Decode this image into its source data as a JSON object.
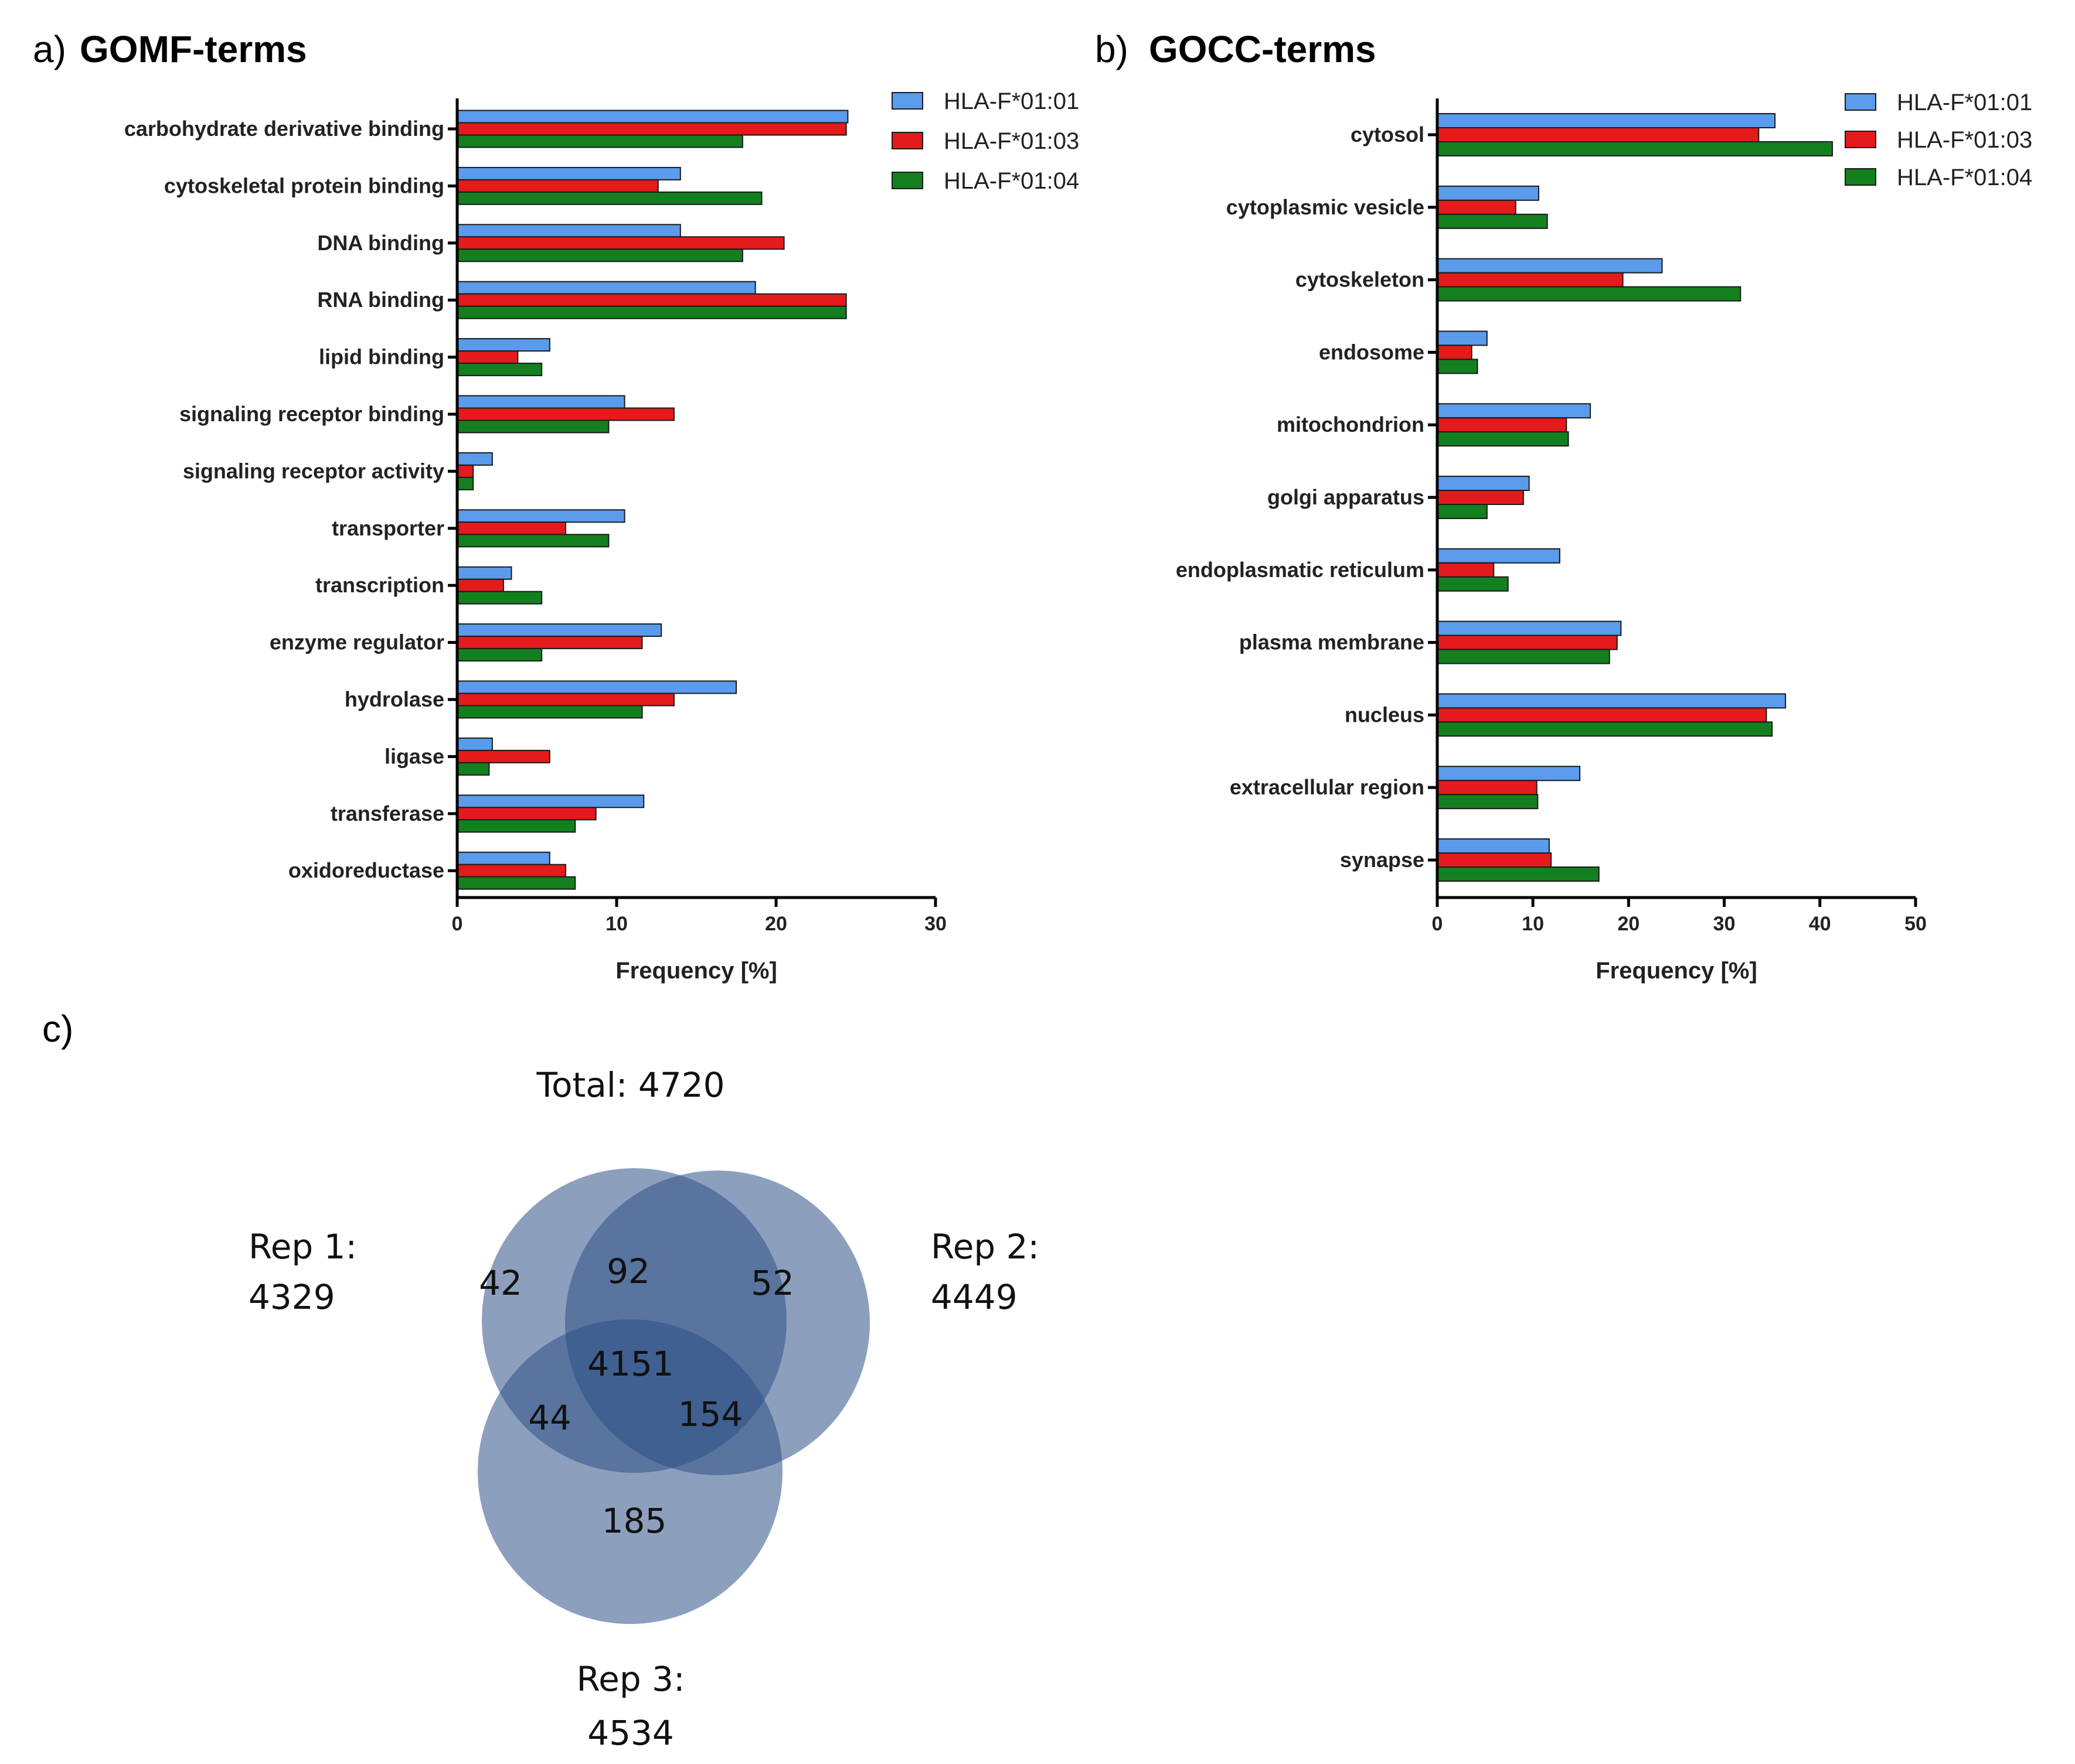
{
  "colors": {
    "s1": "#5a9bec",
    "s2": "#e41a1c",
    "s3": "#137f1f",
    "venn": "#2d5186",
    "axis": "#000000"
  },
  "chart_data": [
    {
      "panel": "a)",
      "type": "bar",
      "orientation": "horizontal",
      "title": "GOMF-terms",
      "xlabel": "Frequency [%]",
      "xlim": [
        0,
        30
      ],
      "xticks": [
        "0",
        "10",
        "20",
        "30"
      ],
      "categories": [
        "carbohydrate derivative binding",
        "cytoskeletal protein binding",
        "DNA binding",
        "RNA binding",
        "lipid binding",
        "signaling receptor binding",
        "signaling receptor activity",
        "transporter",
        "transcription",
        "enzyme regulator",
        "hydrolase",
        "ligase",
        "transferase",
        "oxidoreductase"
      ],
      "series": [
        {
          "name": "HLA-F*01:01",
          "values": [
            24.5,
            14.0,
            14.0,
            18.7,
            5.8,
            10.5,
            2.2,
            10.5,
            3.4,
            12.8,
            17.5,
            2.2,
            11.7,
            5.8
          ]
        },
        {
          "name": "HLA-F*01:03",
          "values": [
            24.4,
            12.6,
            20.5,
            24.4,
            3.8,
            13.6,
            1.0,
            6.8,
            2.9,
            11.6,
            13.6,
            5.8,
            8.7,
            6.8
          ]
        },
        {
          "name": "HLA-F*01:04",
          "values": [
            17.9,
            19.1,
            17.9,
            24.4,
            5.3,
            9.5,
            1.0,
            9.5,
            5.3,
            5.3,
            11.6,
            2.0,
            7.4,
            7.4
          ]
        }
      ]
    },
    {
      "panel": "b)",
      "type": "bar",
      "orientation": "horizontal",
      "title": "GOCC-terms",
      "xlabel": "Frequency [%]",
      "xlim": [
        0,
        50
      ],
      "xticks": [
        "0",
        "10",
        "20",
        "30",
        "40",
        "50"
      ],
      "categories": [
        "cytosol",
        "cytoplasmic vesicle",
        "cytoskeleton",
        "endosome",
        "mitochondrion",
        "golgi apparatus",
        "endoplasmatic reticulum",
        "plasma membrane",
        "nucleus",
        "extracellular region",
        "synapse"
      ],
      "series": [
        {
          "name": "HLA-F*01:01",
          "values": [
            35.3,
            10.6,
            23.5,
            5.2,
            16.0,
            9.6,
            12.8,
            19.2,
            36.4,
            14.9,
            11.7
          ]
        },
        {
          "name": "HLA-F*01:03",
          "values": [
            33.6,
            8.2,
            19.4,
            3.6,
            13.5,
            9.0,
            5.9,
            18.8,
            34.4,
            10.4,
            11.9
          ]
        },
        {
          "name": "HLA-F*01:04",
          "values": [
            41.3,
            11.5,
            31.7,
            4.2,
            13.7,
            5.2,
            7.4,
            18.0,
            35.0,
            10.5,
            16.9
          ]
        }
      ]
    }
  ],
  "venn": {
    "panel": "c)",
    "total": "Total: 4720",
    "labels": [
      {
        "line1": "Rep 1:",
        "line2": "4329"
      },
      {
        "line1": "Rep 2:",
        "line2": "4449"
      },
      {
        "line1": "Rep 3:",
        "line2": "4534"
      }
    ],
    "regions": {
      "only1": "42",
      "only2": "52",
      "only3": "185",
      "r12": "92",
      "r13": "44",
      "r23": "154",
      "all": "4151"
    }
  }
}
